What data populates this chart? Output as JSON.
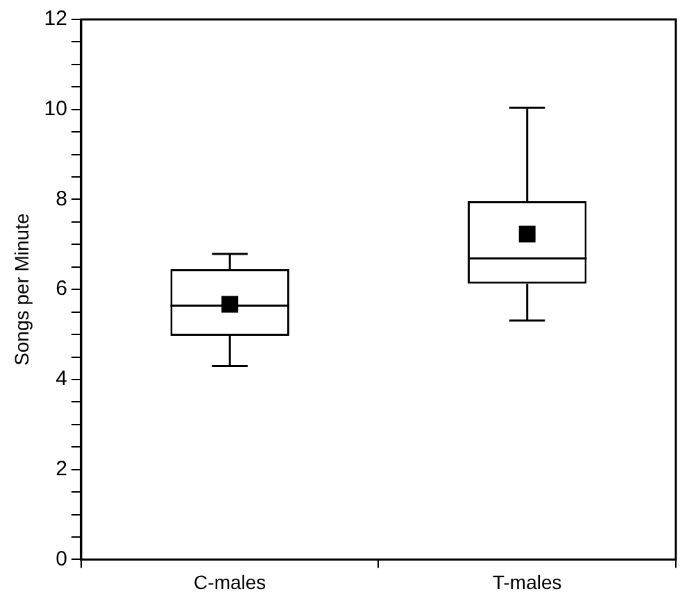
{
  "chart_data": {
    "type": "box",
    "ylabel": "Songs per Minute",
    "categories": [
      "C-males",
      "T-males"
    ],
    "boxes": [
      {
        "low": 4.3,
        "q1": 4.97,
        "median": 5.64,
        "q3": 6.45,
        "high": 6.79,
        "mean": 5.67
      },
      {
        "low": 5.31,
        "q1": 6.13,
        "median": 6.69,
        "q3": 7.96,
        "high": 10.04,
        "mean": 7.23
      }
    ],
    "color": "#000000",
    "ylim": [
      0,
      12
    ],
    "yticks": [
      0,
      {
        "value": 0.5,
        "label": null
      },
      {
        "value": 1,
        "label": null
      },
      {
        "value": 1.5,
        "label": null
      },
      2,
      {
        "value": 2.5,
        "label": null
      },
      {
        "value": 3,
        "label": null
      },
      {
        "value": 3.5,
        "label": null
      },
      4,
      {
        "value": 4.5,
        "label": null
      },
      {
        "value": 5,
        "label": null
      },
      {
        "value": 5.5,
        "label": null
      },
      6,
      {
        "value": 6.5,
        "label": null
      },
      {
        "value": 7,
        "label": null
      },
      {
        "value": 7.5,
        "label": null
      },
      8,
      {
        "value": 8.5,
        "label": null
      },
      {
        "value": 9,
        "label": null
      },
      {
        "value": 9.5,
        "label": null
      },
      10,
      {
        "value": 10.5,
        "label": null
      },
      {
        "value": 11,
        "label": null
      },
      {
        "value": 11.5,
        "label": null
      },
      12
    ],
    "grid": false,
    "legend": false
  }
}
